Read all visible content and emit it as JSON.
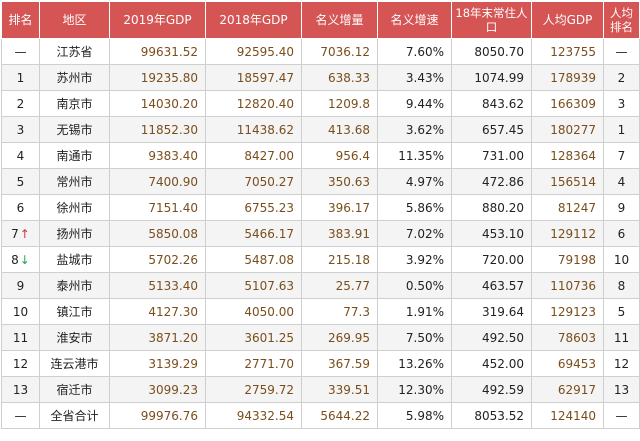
{
  "headers": [
    "排名",
    "地区",
    "2019年GDP",
    "2018年GDP",
    "名义增量",
    "名义增速",
    "18年末常住人口",
    "人均GDP",
    "人均排名"
  ],
  "rows": [
    {
      "rank": "—",
      "arrow": "",
      "region": "江苏省",
      "gdp2019": "99631.52",
      "gdp2018": "92595.40",
      "increment": "7036.12",
      "growth": "7.60%",
      "population": "8050.70",
      "gdp_per_capita": "123755",
      "per_capita_rank": "—"
    },
    {
      "rank": "1",
      "arrow": "",
      "region": "苏州市",
      "gdp2019": "19235.80",
      "gdp2018": "18597.47",
      "increment": "638.33",
      "growth": "3.43%",
      "population": "1074.99",
      "gdp_per_capita": "178939",
      "per_capita_rank": "2"
    },
    {
      "rank": "2",
      "arrow": "",
      "region": "南京市",
      "gdp2019": "14030.20",
      "gdp2018": "12820.40",
      "increment": "1209.8",
      "growth": "9.44%",
      "population": "843.62",
      "gdp_per_capita": "166309",
      "per_capita_rank": "3"
    },
    {
      "rank": "3",
      "arrow": "",
      "region": "无锡市",
      "gdp2019": "11852.30",
      "gdp2018": "11438.62",
      "increment": "413.68",
      "growth": "3.62%",
      "population": "657.45",
      "gdp_per_capita": "180277",
      "per_capita_rank": "1"
    },
    {
      "rank": "4",
      "arrow": "",
      "region": "南通市",
      "gdp2019": "9383.40",
      "gdp2018": "8427.00",
      "increment": "956.4",
      "growth": "11.35%",
      "population": "731.00",
      "gdp_per_capita": "128364",
      "per_capita_rank": "7"
    },
    {
      "rank": "5",
      "arrow": "",
      "region": "常州市",
      "gdp2019": "7400.90",
      "gdp2018": "7050.27",
      "increment": "350.63",
      "growth": "4.97%",
      "population": "472.86",
      "gdp_per_capita": "156514",
      "per_capita_rank": "4"
    },
    {
      "rank": "6",
      "arrow": "",
      "region": "徐州市",
      "gdp2019": "7151.40",
      "gdp2018": "6755.23",
      "increment": "396.17",
      "growth": "5.86%",
      "population": "880.20",
      "gdp_per_capita": "81247",
      "per_capita_rank": "9"
    },
    {
      "rank": "7",
      "arrow": "↑",
      "region": "扬州市",
      "gdp2019": "5850.08",
      "gdp2018": "5466.17",
      "increment": "383.91",
      "growth": "7.02%",
      "population": "453.10",
      "gdp_per_capita": "129112",
      "per_capita_rank": "6"
    },
    {
      "rank": "8",
      "arrow": "↓",
      "region": "盐城市",
      "gdp2019": "5702.26",
      "gdp2018": "5487.08",
      "increment": "215.18",
      "growth": "3.92%",
      "population": "720.00",
      "gdp_per_capita": "79198",
      "per_capita_rank": "10"
    },
    {
      "rank": "9",
      "arrow": "",
      "region": "泰州市",
      "gdp2019": "5133.40",
      "gdp2018": "5107.63",
      "increment": "25.77",
      "growth": "0.50%",
      "population": "463.57",
      "gdp_per_capita": "110736",
      "per_capita_rank": "8"
    },
    {
      "rank": "10",
      "arrow": "",
      "region": "镇江市",
      "gdp2019": "4127.30",
      "gdp2018": "4050.00",
      "increment": "77.3",
      "growth": "1.91%",
      "population": "319.64",
      "gdp_per_capita": "129123",
      "per_capita_rank": "5"
    },
    {
      "rank": "11",
      "arrow": "",
      "region": "淮安市",
      "gdp2019": "3871.20",
      "gdp2018": "3601.25",
      "increment": "269.95",
      "growth": "7.50%",
      "population": "492.50",
      "gdp_per_capita": "78603",
      "per_capita_rank": "11"
    },
    {
      "rank": "12",
      "arrow": "",
      "region": "连云港市",
      "gdp2019": "3139.29",
      "gdp2018": "2771.70",
      "increment": "367.59",
      "growth": "13.26%",
      "population": "452.00",
      "gdp_per_capita": "69453",
      "per_capita_rank": "12"
    },
    {
      "rank": "13",
      "arrow": "",
      "region": "宿迁市",
      "gdp2019": "3099.23",
      "gdp2018": "2759.72",
      "increment": "339.51",
      "growth": "12.30%",
      "population": "492.59",
      "gdp_per_capita": "62917",
      "per_capita_rank": "13"
    },
    {
      "rank": "—",
      "arrow": "",
      "region": "全省合计",
      "gdp2019": "99976.76",
      "gdp2018": "94332.54",
      "increment": "5644.22",
      "growth": "5.98%",
      "population": "8053.52",
      "gdp_per_capita": "124140",
      "per_capita_rank": "—"
    }
  ]
}
